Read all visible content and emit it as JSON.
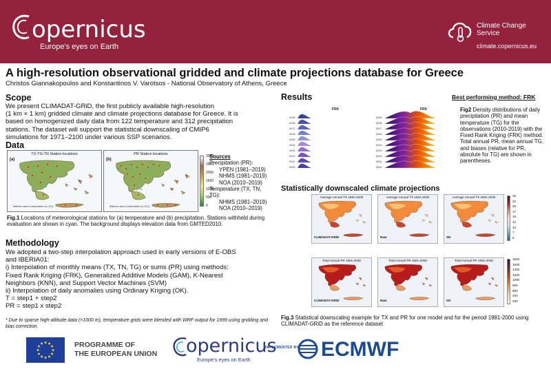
{
  "header": {
    "logo_word": "opernicus",
    "logo_tagline": "Europe's eyes on Earth",
    "ccs_name": "Climate Change Service",
    "ccs_url": "climate.copernicus.eu",
    "band_color": "#94213d"
  },
  "title": "A high-resolution observational gridded and climate projections database for Greece",
  "authors": "Christos Giannakopoulos and Konstantinos V. Varotsos - National Observatory of Athens, Greece",
  "scope": {
    "heading": "Scope",
    "lines": [
      "We present CLIMADAT-GRiD, the first publicly available high-resolution",
      "(1 km × 1 km) gridded climate and climate projections database for Greece. It is",
      "based on homogenized daily data from 122 temperature and 312 precipitation",
      "stations. The dataset will support the statistical downscaling of CMIP6",
      "simulations for 1971–2100 under various SSP scenarios."
    ]
  },
  "data_section": {
    "heading": "Data",
    "map_a": {
      "tag": "(a)",
      "title": "TX-TG-TN Station locations",
      "note": "Stations used in interpolation (n=122)"
    },
    "map_b": {
      "tag": "(b)",
      "title": "PR Station locations",
      "note": "Stations used in interpolation (n=312)"
    },
    "elevation_ticks": [
      "3000",
      "2500",
      "2000",
      "1500",
      "1000",
      "500",
      "0"
    ],
    "sources": {
      "heading": "Sources",
      "lines": [
        "Precipitation (PR):",
        "YPEN (1981–2019)",
        "NHMS (1981–2019)",
        "NOA (2010–2019)",
        "Temperature (TX, TN,",
        "TG):",
        "NHMS (1981–2019)",
        "NOA (2010–2019)"
      ]
    },
    "fig1_label": "Fig.1",
    "fig1_text": " Locations of meteorological stations for (a) temperature and (b) precipitation. Stations withheld during evaluation are shown in cyan. The background displays elevation data from GMTED2010."
  },
  "methodology": {
    "heading": "Methodology",
    "lines": [
      "We adopted a two-step interpolation approach used in early versions of E-OBS",
      "and IBERIA01:",
      "i) Interpolation of monthly means (TX, TN, TG) or sums (PR) using methods:",
      "Fixed Rank Kriging (FRK), Generalized Additive Models (GAM), K-Nearest",
      "Neighbors (KNN), and Support Vector Machines (SVM)",
      "ii) Interpolation of daily anomalies using Ordinary Kriging (OK).",
      "T = step1 + step2",
      "PR = step1 x step2"
    ],
    "footnote": "* Due to sparse high-altitude data (>1000 m), temperature grids were blended with WRF output for 1999 using gridding and bias correction."
  },
  "results": {
    "heading": "Results",
    "best_method": "Best performing method: FRK",
    "fig2_label": "Fig2",
    "fig2_text": " Density distributions of daily precipitation (PR) and mean temperature (TG) for the observations (2010-2019) with the Fixed Rank Kriging (FRK) method. Total annual PR, mean annual TG, and biases (relative for PR, absolute for TG) are shown in parentheses.",
    "ridge_left_title": "FRK",
    "ridge_right_title": "FRK",
    "years": [
      "2019",
      "2018",
      "2017",
      "2016",
      "2015",
      "2014",
      "2013",
      "2012",
      "2011",
      "2010"
    ]
  },
  "projections": {
    "heading": "Statistically downscaled climate projections",
    "row1": [
      {
        "title": "Average Annual TX 1981-2000",
        "label": "CLIMADAT-GRiD"
      },
      {
        "title": "Average Annual TX 1981-2000",
        "label": "Raw"
      },
      {
        "title": "Average Annual TX 1981-2000",
        "label": "SD"
      }
    ],
    "row2": [
      {
        "title": "Total Annual PR 1981-2000",
        "label": "CLIMADAT-GRiD"
      },
      {
        "title": "Total Annual PR 1981-2000",
        "label": "Raw"
      },
      {
        "title": "Total Annual PR 1981-2000",
        "label": "SD"
      }
    ],
    "tx_ticks": [
      "25",
      "22",
      "20",
      "17",
      "15",
      "12",
      "10",
      "7",
      "5"
    ],
    "pr_ticks": [
      "1800",
      "1600",
      "1400",
      "1200",
      "1000",
      "800",
      "600",
      "400",
      "200"
    ],
    "fig3_label": "Fig.3",
    "fig3_text": " Statistical downscaling example for TX and PR for one model and for the period 1981-2000 using CLIMADAT-GRiD as the reference dataset"
  },
  "footer": {
    "eu_line1": "PROGRAMME OF",
    "eu_line2": "THE EUROPEAN UNION",
    "cop_word": "opernicus",
    "cop_tag": "Europe's eyes on Earth",
    "implemented": "IMPLEMENTED BY",
    "ecmwf": "ECMWF"
  }
}
